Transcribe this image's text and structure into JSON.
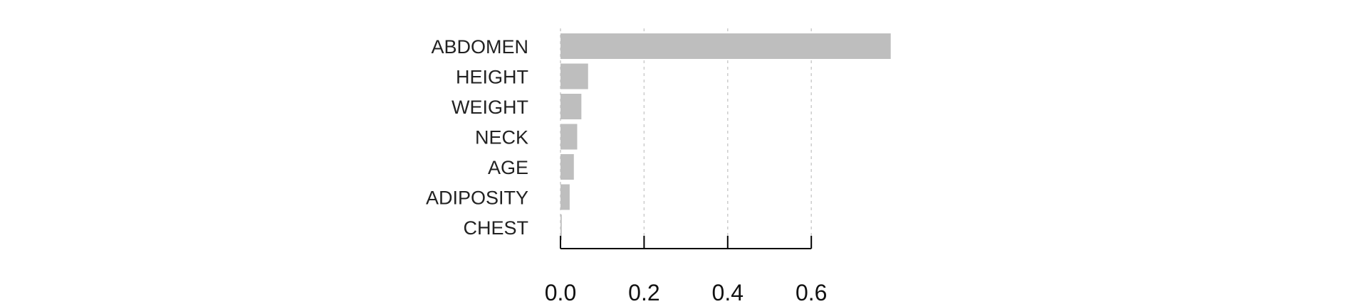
{
  "chart_data": {
    "type": "bar",
    "orientation": "horizontal",
    "categories": [
      "ABDOMEN",
      "HEIGHT",
      "WEIGHT",
      "NECK",
      "AGE",
      "ADIPOSITY",
      "CHEST"
    ],
    "values": [
      0.79,
      0.066,
      0.05,
      0.04,
      0.032,
      0.022,
      0.003
    ],
    "xlim": [
      0,
      0.8
    ],
    "x_ticks": [
      0,
      0.2,
      0.4,
      0.6
    ],
    "x_tick_labels": [
      "0.0",
      "0.2",
      "0.4",
      "0.6"
    ],
    "grid": "vertical dashed",
    "legend": "none",
    "colors": {
      "bar": "#bebebe",
      "grid": "#cccccc",
      "axis": "#000000"
    }
  }
}
